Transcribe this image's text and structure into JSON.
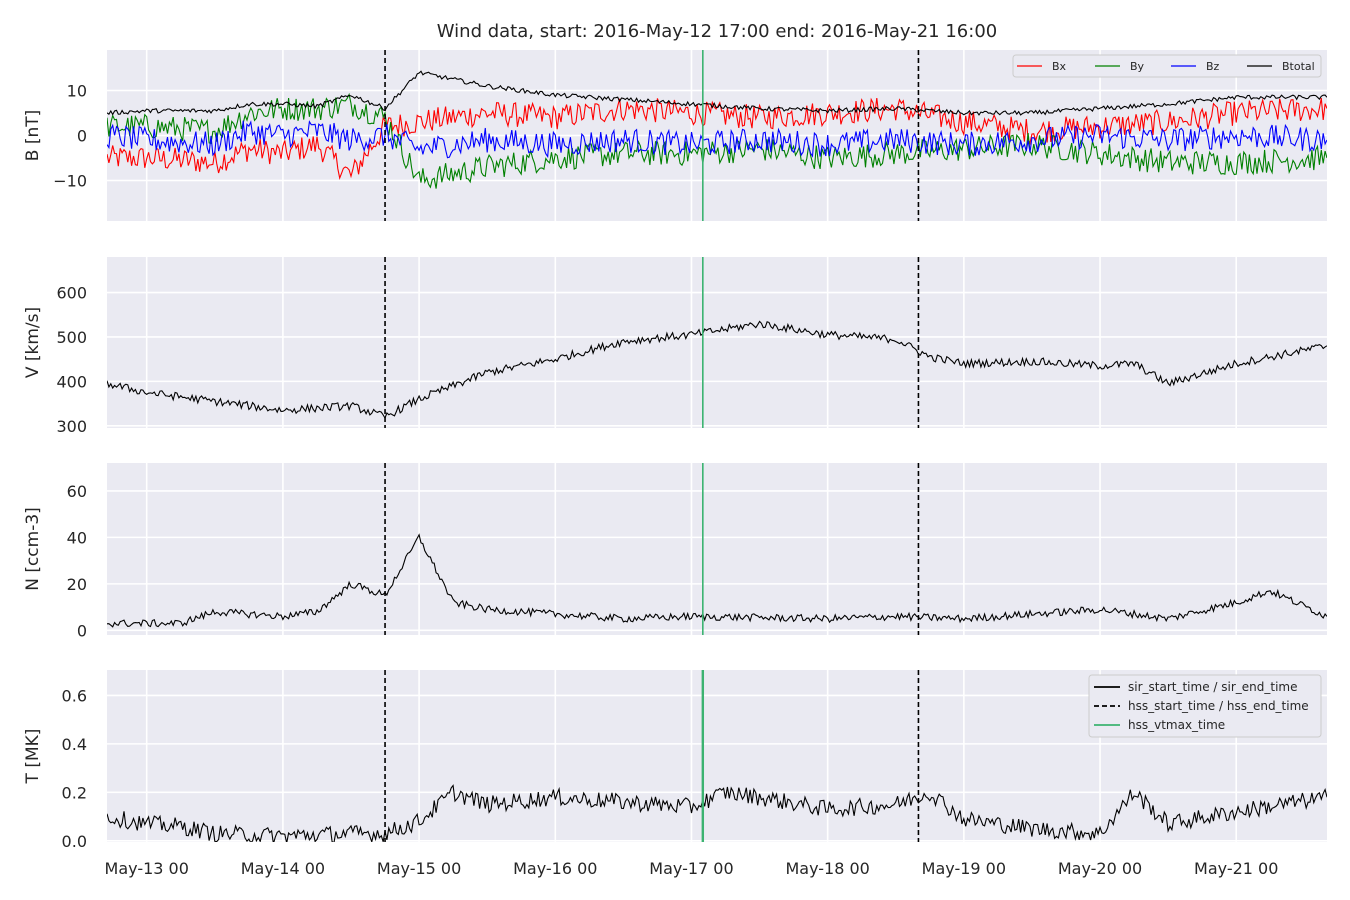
{
  "figure": {
    "title": "Wind data, start: 2016-May-12 17:00  end: 2016-May-21 16:00"
  },
  "chart_data": [
    {
      "type": "line",
      "panel": "B",
      "ylabel": "B [nT]",
      "ylim": [
        -19,
        19
      ],
      "yticks": [
        -10,
        0,
        10
      ],
      "ytick_labels": [
        "−10",
        "0",
        "10"
      ],
      "grid": true,
      "legend": "top-right",
      "series": [
        {
          "name": "Bx",
          "color": "#ff0000",
          "x": [
            "2016-05-12 17:00",
            "2016-05-13 00:00",
            "2016-05-13 12:00",
            "2016-05-13 18:00",
            "2016-05-14 00:00",
            "2016-05-14 06:00",
            "2016-05-14 12:00",
            "2016-05-14 18:00",
            "2016-05-15 00:00",
            "2016-05-15 12:00",
            "2016-05-16 00:00",
            "2016-05-16 12:00",
            "2016-05-17 00:00",
            "2016-05-17 12:00",
            "2016-05-18 00:00",
            "2016-05-18 12:00",
            "2016-05-19 00:00",
            "2016-05-19 12:00",
            "2016-05-20 00:00",
            "2016-05-20 12:00",
            "2016-05-21 00:00",
            "2016-05-21 16:00"
          ],
          "values": [
            -5,
            -5,
            -6,
            -3,
            -4,
            -2,
            -9,
            2,
            3,
            5,
            4,
            6,
            5,
            4,
            5,
            6,
            3,
            1,
            2,
            3,
            5,
            6
          ]
        },
        {
          "name": "By",
          "color": "#008000",
          "x": [
            "2016-05-12 17:00",
            "2016-05-13 00:00",
            "2016-05-13 12:00",
            "2016-05-13 18:00",
            "2016-05-14 00:00",
            "2016-05-14 06:00",
            "2016-05-14 12:00",
            "2016-05-14 18:00",
            "2016-05-15 00:00",
            "2016-05-15 12:00",
            "2016-05-16 00:00",
            "2016-05-16 12:00",
            "2016-05-17 00:00",
            "2016-05-17 12:00",
            "2016-05-18 00:00",
            "2016-05-18 12:00",
            "2016-05-19 00:00",
            "2016-05-19 12:00",
            "2016-05-20 00:00",
            "2016-05-20 12:00",
            "2016-05-21 00:00",
            "2016-05-21 16:00"
          ],
          "values": [
            2,
            2,
            1,
            5,
            6,
            6,
            7,
            4,
            -10,
            -7,
            -5,
            -4,
            -4,
            -3,
            -5,
            -4,
            -3,
            -2,
            -4,
            -6,
            -6,
            -5
          ]
        },
        {
          "name": "Bz",
          "color": "#0000ff",
          "x": [
            "2016-05-12 17:00",
            "2016-05-13 00:00",
            "2016-05-13 12:00",
            "2016-05-13 18:00",
            "2016-05-14 00:00",
            "2016-05-14 06:00",
            "2016-05-14 12:00",
            "2016-05-14 18:00",
            "2016-05-15 00:00",
            "2016-05-15 12:00",
            "2016-05-16 00:00",
            "2016-05-16 12:00",
            "2016-05-17 00:00",
            "2016-05-17 12:00",
            "2016-05-18 00:00",
            "2016-05-18 12:00",
            "2016-05-19 00:00",
            "2016-05-19 12:00",
            "2016-05-20 00:00",
            "2016-05-20 12:00",
            "2016-05-21 00:00",
            "2016-05-21 16:00"
          ],
          "values": [
            0,
            -1,
            -2,
            1,
            0,
            1,
            -1,
            0,
            -3,
            -1,
            -2,
            -1,
            -2,
            -1,
            -2,
            -1,
            -2,
            -1,
            0,
            -1,
            0,
            -1
          ]
        },
        {
          "name": "Btotal",
          "color": "#000000",
          "x": [
            "2016-05-12 17:00",
            "2016-05-13 00:00",
            "2016-05-13 12:00",
            "2016-05-13 18:00",
            "2016-05-14 00:00",
            "2016-05-14 06:00",
            "2016-05-14 12:00",
            "2016-05-14 18:00",
            "2016-05-15 00:00",
            "2016-05-15 12:00",
            "2016-05-16 00:00",
            "2016-05-16 12:00",
            "2016-05-17 00:00",
            "2016-05-17 12:00",
            "2016-05-18 00:00",
            "2016-05-18 12:00",
            "2016-05-19 00:00",
            "2016-05-19 12:00",
            "2016-05-20 00:00",
            "2016-05-20 12:00",
            "2016-05-21 00:00",
            "2016-05-21 16:00"
          ],
          "values": [
            5,
            5.5,
            5.5,
            7,
            7,
            6.5,
            9,
            6,
            14,
            11,
            9,
            8,
            7,
            6,
            5.5,
            6,
            5,
            5,
            6,
            7,
            8.5,
            8.5
          ]
        }
      ]
    },
    {
      "type": "line",
      "panel": "V",
      "ylabel": "V [km/s]",
      "ylim": [
        295,
        680
      ],
      "yticks": [
        300,
        400,
        500,
        600
      ],
      "ytick_labels": [
        "300",
        "400",
        "500",
        "600"
      ],
      "grid": true,
      "series": [
        {
          "color": "#000000",
          "x": [
            "2016-05-12 17:00",
            "2016-05-13 00:00",
            "2016-05-13 12:00",
            "2016-05-14 00:00",
            "2016-05-14 12:00",
            "2016-05-14 18:00",
            "2016-05-15 00:00",
            "2016-05-15 12:00",
            "2016-05-16 00:00",
            "2016-05-16 12:00",
            "2016-05-17 00:00",
            "2016-05-17 12:00",
            "2016-05-18 00:00",
            "2016-05-18 12:00",
            "2016-05-18 18:00",
            "2016-05-19 00:00",
            "2016-05-19 12:00",
            "2016-05-20 00:00",
            "2016-05-20 06:00",
            "2016-05-20 12:00",
            "2016-05-21 00:00",
            "2016-05-21 16:00"
          ],
          "values": [
            395,
            375,
            355,
            335,
            345,
            320,
            360,
            420,
            450,
            490,
            505,
            530,
            505,
            495,
            455,
            440,
            445,
            435,
            440,
            395,
            440,
            480
          ]
        }
      ]
    },
    {
      "type": "line",
      "panel": "N",
      "ylabel": "N [ccm-3]",
      "ylim": [
        -2,
        72
      ],
      "yticks": [
        0,
        20,
        40,
        60
      ],
      "ytick_labels": [
        "0",
        "20",
        "40",
        "60"
      ],
      "grid": true,
      "series": [
        {
          "color": "#000000",
          "x": [
            "2016-05-12 17:00",
            "2016-05-13 00:00",
            "2016-05-13 06:00",
            "2016-05-13 12:00",
            "2016-05-14 00:00",
            "2016-05-14 06:00",
            "2016-05-14 12:00",
            "2016-05-14 18:00",
            "2016-05-15 00:00",
            "2016-05-15 06:00",
            "2016-05-15 12:00",
            "2016-05-16 00:00",
            "2016-05-16 12:00",
            "2016-05-17 00:00",
            "2016-05-18 00:00",
            "2016-05-18 12:00",
            "2016-05-19 00:00",
            "2016-05-19 12:00",
            "2016-05-20 00:00",
            "2016-05-20 12:00",
            "2016-05-21 00:00",
            "2016-05-21 06:00",
            "2016-05-21 16:00"
          ],
          "values": [
            3,
            3,
            3,
            8,
            6,
            8,
            20,
            15,
            40,
            12,
            9,
            7,
            5,
            6,
            5,
            6,
            5,
            7,
            9,
            5,
            12,
            17,
            6
          ]
        }
      ]
    },
    {
      "type": "line",
      "panel": "T",
      "ylabel": "T [MK]",
      "ylim": [
        -0.005,
        0.705
      ],
      "yticks": [
        0.0,
        0.2,
        0.4,
        0.6
      ],
      "ytick_labels": [
        "0.0",
        "0.2",
        "0.4",
        "0.6"
      ],
      "grid": true,
      "legend": "top-right",
      "series": [
        {
          "color": "#000000",
          "x": [
            "2016-05-12 17:00",
            "2016-05-13 00:00",
            "2016-05-13 06:00",
            "2016-05-13 12:00",
            "2016-05-14 00:00",
            "2016-05-14 12:00",
            "2016-05-14 18:00",
            "2016-05-15 00:00",
            "2016-05-15 06:00",
            "2016-05-15 12:00",
            "2016-05-16 00:00",
            "2016-05-16 12:00",
            "2016-05-17 00:00",
            "2016-05-17 06:00",
            "2016-05-17 12:00",
            "2016-05-18 00:00",
            "2016-05-18 12:00",
            "2016-05-18 18:00",
            "2016-05-19 00:00",
            "2016-05-19 12:00",
            "2016-05-20 00:00",
            "2016-05-20 06:00",
            "2016-05-20 12:00",
            "2016-05-21 00:00",
            "2016-05-21 16:00"
          ],
          "values": [
            0.1,
            0.07,
            0.06,
            0.03,
            0.02,
            0.03,
            0.03,
            0.08,
            0.2,
            0.15,
            0.18,
            0.16,
            0.14,
            0.2,
            0.18,
            0.13,
            0.15,
            0.2,
            0.09,
            0.05,
            0.03,
            0.2,
            0.07,
            0.12,
            0.18
          ]
        }
      ]
    }
  ],
  "x_axis": {
    "range": [
      "2016-05-12 17:00",
      "2016-05-21 16:00"
    ],
    "ticks": [
      "2016-05-13 00:00",
      "2016-05-14 00:00",
      "2016-05-15 00:00",
      "2016-05-16 00:00",
      "2016-05-17 00:00",
      "2016-05-18 00:00",
      "2016-05-19 00:00",
      "2016-05-20 00:00",
      "2016-05-21 00:00"
    ],
    "tick_labels": [
      "May-13 00",
      "May-14 00",
      "May-15 00",
      "May-16 00",
      "May-17 00",
      "May-18 00",
      "May-19 00",
      "May-20 00",
      "May-21 00"
    ]
  },
  "event_lines": {
    "hss_start_time": "2016-05-14 18:00",
    "hss_end_time": "2016-05-18 16:00",
    "hss_vtmax_time": "2016-05-17 02:00",
    "hss_color": "#000000",
    "vtmax_color": "#3cb371"
  },
  "legend_b": {
    "items": [
      "Bx",
      "By",
      "Bz",
      "Btotal"
    ],
    "colors": [
      "#ff0000",
      "#008000",
      "#0000ff",
      "#000000"
    ]
  },
  "legend_t": {
    "items": [
      "sir_start_time / sir_end_time",
      "hss_start_time / hss_end_time",
      "hss_vtmax_time"
    ],
    "styles": [
      "solid",
      "dashed",
      "solid"
    ],
    "colors": [
      "#000000",
      "#000000",
      "#3cb371"
    ]
  }
}
